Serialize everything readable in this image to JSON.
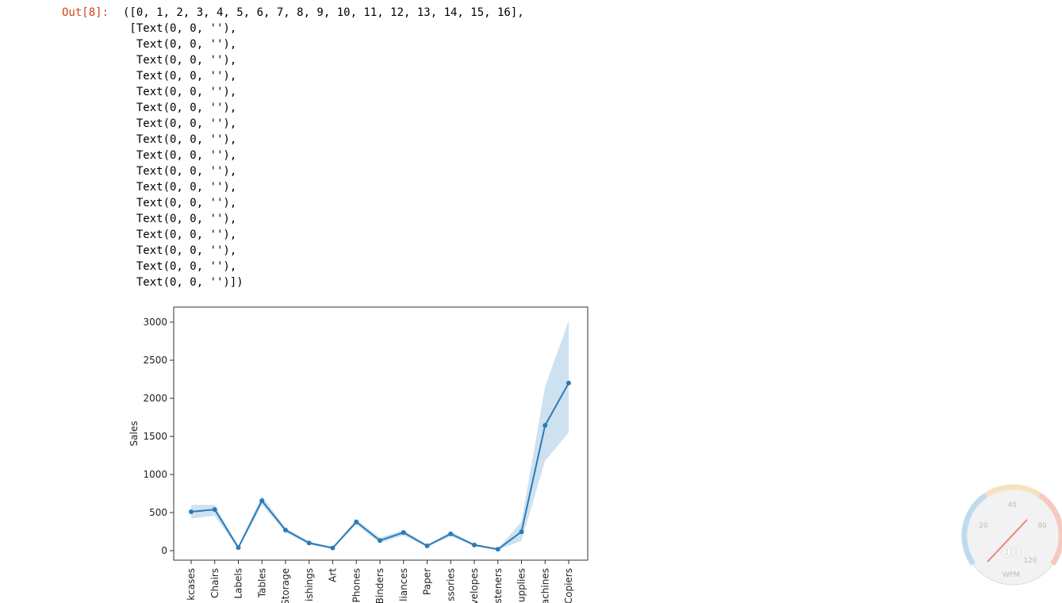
{
  "output": {
    "prompt": "Out[8]:",
    "lines": [
      "([0, 1, 2, 3, 4, 5, 6, 7, 8, 9, 10, 11, 12, 13, 14, 15, 16],",
      " [Text(0, 0, ''),",
      "  Text(0, 0, ''),",
      "  Text(0, 0, ''),",
      "  Text(0, 0, ''),",
      "  Text(0, 0, ''),",
      "  Text(0, 0, ''),",
      "  Text(0, 0, ''),",
      "  Text(0, 0, ''),",
      "  Text(0, 0, ''),",
      "  Text(0, 0, ''),",
      "  Text(0, 0, ''),",
      "  Text(0, 0, ''),",
      "  Text(0, 0, ''),",
      "  Text(0, 0, ''),",
      "  Text(0, 0, ''),",
      "  Text(0, 0, ''),",
      "  Text(0, 0, '')])"
    ]
  },
  "chart_data": {
    "type": "line",
    "ylabel": "Sales",
    "categories": [
      "kcases",
      "Chairs",
      "Labels",
      "Tables",
      "Storage",
      "ishings",
      "Art",
      "Phones",
      "Binders",
      "liances",
      "Paper",
      "ssories",
      "velopes",
      "steners",
      "upplies",
      "achines",
      "Copiers"
    ],
    "values": [
      510,
      540,
      40,
      655,
      270,
      100,
      35,
      378,
      133,
      238,
      62,
      220,
      74,
      18,
      248,
      1645,
      2200
    ],
    "ci_lower": [
      420,
      460,
      20,
      600,
      240,
      80,
      25,
      340,
      100,
      200,
      50,
      190,
      60,
      10,
      130,
      1180,
      1550
    ],
    "ci_upper": [
      600,
      600,
      60,
      720,
      300,
      120,
      45,
      410,
      170,
      270,
      75,
      250,
      90,
      25,
      380,
      2150,
      3020
    ],
    "color": "#2c7bb6",
    "band_color": "#a6c8e4",
    "ylim": [
      -125,
      3198
    ],
    "yticks": [
      0,
      500,
      1000,
      1500,
      2000,
      2500,
      3000
    ]
  },
  "widget": {
    "scale": [
      "40",
      "20",
      "80",
      "120"
    ],
    "reading": "00",
    "unit": "WPM"
  }
}
